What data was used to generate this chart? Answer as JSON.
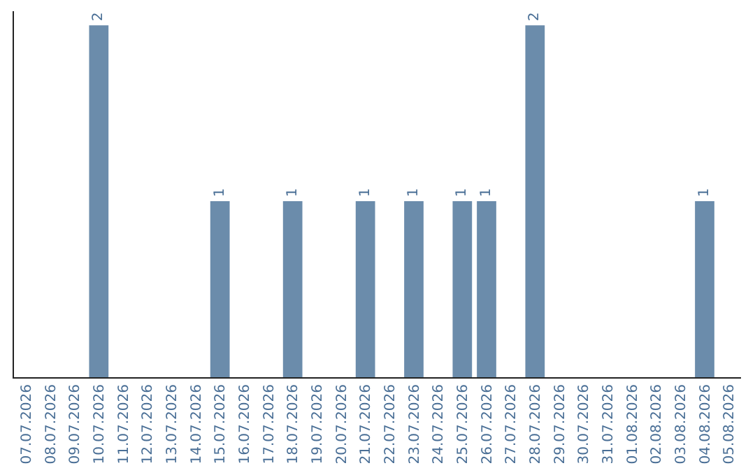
{
  "chart_data": {
    "type": "bar",
    "categories": [
      "07.07.2026",
      "08.07.2026",
      "09.07.2026",
      "10.07.2026",
      "11.07.2026",
      "12.07.2026",
      "13.07.2026",
      "14.07.2026",
      "15.07.2026",
      "16.07.2026",
      "17.07.2026",
      "18.07.2026",
      "19.07.2026",
      "20.07.2026",
      "21.07.2026",
      "22.07.2026",
      "23.07.2026",
      "24.07.2026",
      "25.07.2026",
      "26.07.2026",
      "27.07.2026",
      "28.07.2026",
      "29.07.2026",
      "30.07.2026",
      "31.07.2026",
      "01.08.2026",
      "02.08.2026",
      "03.08.2026",
      "04.08.2026",
      "05.08.2026"
    ],
    "values": [
      0,
      0,
      0,
      2,
      0,
      0,
      0,
      0,
      1,
      0,
      0,
      1,
      0,
      0,
      1,
      0,
      1,
      0,
      1,
      1,
      0,
      2,
      0,
      0,
      0,
      0,
      0,
      0,
      1,
      0
    ],
    "value_labels": [
      null,
      null,
      null,
      "2",
      null,
      null,
      null,
      null,
      "1",
      null,
      null,
      "1",
      null,
      null,
      "1",
      null,
      "1",
      null,
      "1",
      "1",
      null,
      "2",
      null,
      null,
      null,
      null,
      null,
      null,
      "1",
      null
    ],
    "color": "#6b8cab",
    "ylim": [
      0,
      2.08
    ],
    "tick_labels": "x",
    "legend": false
  }
}
